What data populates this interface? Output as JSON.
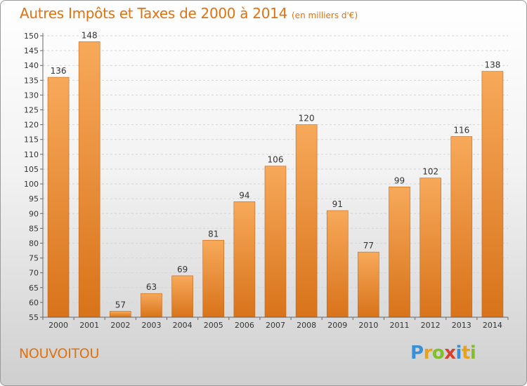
{
  "header": {
    "title": "Autres Impôts et Taxes de 2000 à 2014",
    "subtitle": "(en milliers d'€)"
  },
  "footer": {
    "town": "NOUVOITOU",
    "logo_letters": [
      "P",
      "r",
      "o",
      "x",
      "i",
      "t",
      "i"
    ],
    "logo_colors": [
      "#3a8fd6",
      "#e8a21a",
      "#7fbf2a",
      "#d93f2f",
      "#3a8fd6",
      "#e8a21a",
      "#7fbf2a"
    ]
  },
  "colors": {
    "bar_light": "#f7a95a",
    "bar_dark": "#d8731a",
    "axis": "#666666"
  },
  "chart_data": {
    "type": "bar",
    "categories": [
      "2000",
      "2001",
      "2002",
      "2003",
      "2004",
      "2005",
      "2006",
      "2007",
      "2008",
      "2009",
      "2010",
      "2011",
      "2012",
      "2013",
      "2014"
    ],
    "values": [
      136,
      148,
      57,
      63,
      69,
      81,
      94,
      106,
      120,
      91,
      77,
      99,
      102,
      116,
      138
    ],
    "data_labels": [
      "136",
      "148",
      "57",
      "63",
      "69",
      "81",
      "94",
      "106",
      "120",
      "91",
      "77",
      "99",
      "102",
      "116",
      "138"
    ],
    "y_ticks": [
      "55",
      "60",
      "65",
      "70",
      "75",
      "80",
      "85",
      "90",
      "95",
      "100",
      "105",
      "110",
      "115",
      "120",
      "125",
      "130",
      "135",
      "140",
      "145",
      "150"
    ],
    "ylim": [
      55,
      150
    ],
    "grid": true
  }
}
